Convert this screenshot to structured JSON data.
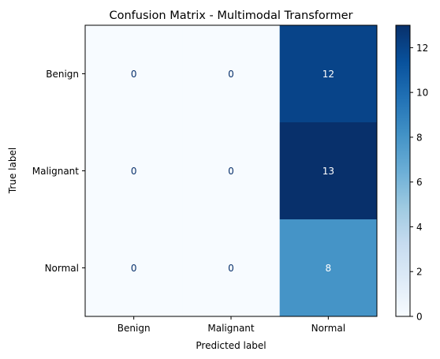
{
  "chart_data": {
    "type": "heatmap",
    "title": "Confusion Matrix - Multimodal Transformer",
    "xlabel": "Predicted label",
    "ylabel": "True label",
    "x_categories": [
      "Benign",
      "Malignant",
      "Normal"
    ],
    "y_categories": [
      "Benign",
      "Malignant",
      "Normal"
    ],
    "values": [
      [
        0,
        0,
        12
      ],
      [
        0,
        0,
        13
      ],
      [
        0,
        0,
        8
      ]
    ],
    "colormap": "Blues",
    "colorbar": {
      "min": 0,
      "max": 13,
      "ticks": [
        0,
        2,
        4,
        6,
        8,
        10,
        12
      ]
    },
    "grid": false,
    "legend": "colorbar-right"
  }
}
